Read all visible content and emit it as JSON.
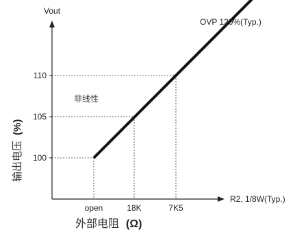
{
  "chart_data": {
    "type": "line",
    "ylabel_top": "Vout",
    "xlabel_end": "R2, 1/8W(Typ.)",
    "ylabel_side": "输出电压",
    "ylabel_side_unit": "(%)",
    "xlabel_bottom": "外部电阻",
    "xlabel_bottom_unit": "(Ω)",
    "annotation_top": "OVP 120%(Typ.)",
    "annotation_region": "非线性",
    "x_categories": [
      "open",
      "18K",
      "7K5"
    ],
    "y_ticks": [
      100,
      105,
      110
    ],
    "series": [
      {
        "x": [
          "open",
          "18K",
          "7K5"
        ],
        "y": [
          100,
          105,
          110
        ]
      }
    ],
    "line_end_y": 120,
    "grid": "dashed guide lines at data points"
  }
}
